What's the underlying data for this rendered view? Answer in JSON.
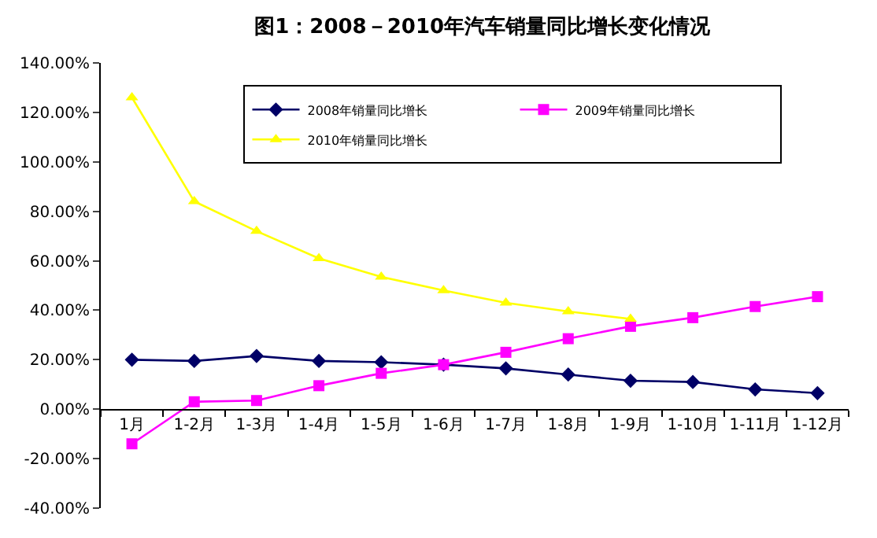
{
  "chart_data": {
    "type": "line",
    "title": "图1：2008－2010年汽车销量同比增长变化情况",
    "categories": [
      "1月",
      "1-2月",
      "1-3月",
      "1-4月",
      "1-5月",
      "1-6月",
      "1-7月",
      "1-8月",
      "1-9月",
      "1-10月",
      "1-11月",
      "1-12月"
    ],
    "series": [
      {
        "name": "2008年销量同比增长",
        "color": "#000066",
        "marker": "diamond",
        "values": [
          20,
          19.5,
          21.5,
          19.5,
          19,
          18,
          16.5,
          14,
          11.5,
          11,
          8,
          6.5
        ]
      },
      {
        "name": "2009年销量同比增长",
        "color": "#ff00ff",
        "marker": "square",
        "values": [
          -14,
          3,
          3.5,
          9.5,
          14.5,
          18,
          23,
          28.5,
          33.5,
          37,
          41.5,
          45.5
        ]
      },
      {
        "name": "2010年销量同比增长",
        "color": "#ffff00",
        "marker": "triangle",
        "values": [
          126,
          84,
          72,
          61,
          53.5,
          48,
          43,
          39.5,
          36.5,
          null,
          null,
          null
        ]
      }
    ],
    "ylim": [
      -40,
      140
    ],
    "yticks": [
      {
        "value": -40,
        "label": "-40.00%"
      },
      {
        "value": -20,
        "label": "-20.00%"
      },
      {
        "value": 0,
        "label": "0.00%"
      },
      {
        "value": 20,
        "label": "20.00%"
      },
      {
        "value": 40,
        "label": "40.00%"
      },
      {
        "value": 60,
        "label": "60.00%"
      },
      {
        "value": 80,
        "label": "80.00%"
      },
      {
        "value": 100,
        "label": "100.00%"
      },
      {
        "value": 120,
        "label": "120.00%"
      },
      {
        "value": 140,
        "label": "140.00%"
      }
    ],
    "legend": "top",
    "line_style": "solid"
  }
}
